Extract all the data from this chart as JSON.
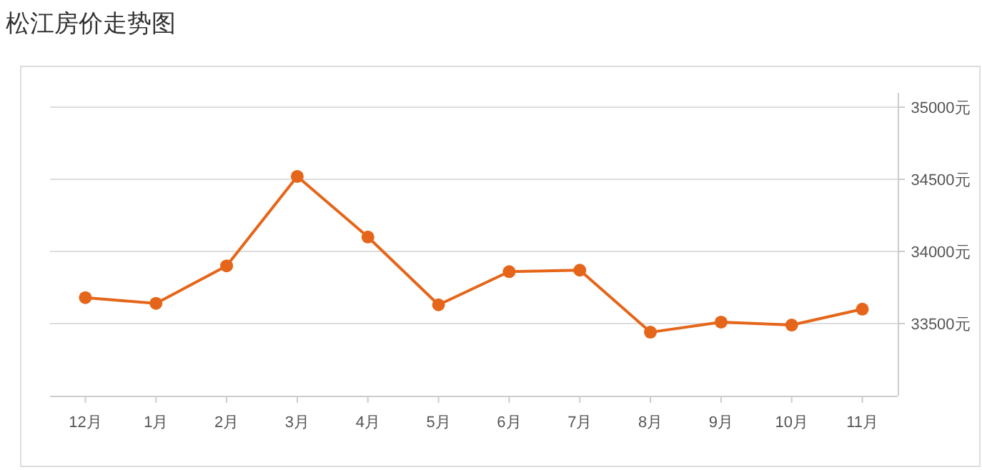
{
  "chart_data": {
    "type": "line",
    "title": "松江房价走势图",
    "categories": [
      "12月",
      "1月",
      "2月",
      "3月",
      "4月",
      "5月",
      "6月",
      "7月",
      "8月",
      "9月",
      "10月",
      "11月"
    ],
    "series": [
      {
        "color": "#e5661a",
        "values": [
          33680,
          33640,
          33900,
          34520,
          34100,
          33630,
          33860,
          33870,
          33440,
          33510,
          33490,
          33600
        ]
      }
    ],
    "ylim": [
      33000,
      35000
    ],
    "yticks": [
      {
        "value": 33500,
        "label": "33500元"
      },
      {
        "value": 34000,
        "label": "34000元"
      },
      {
        "value": 34500,
        "label": "34500元"
      },
      {
        "value": 35000,
        "label": "35000元"
      }
    ],
    "grid": "y",
    "marker": "circle",
    "line_style": "solid"
  }
}
